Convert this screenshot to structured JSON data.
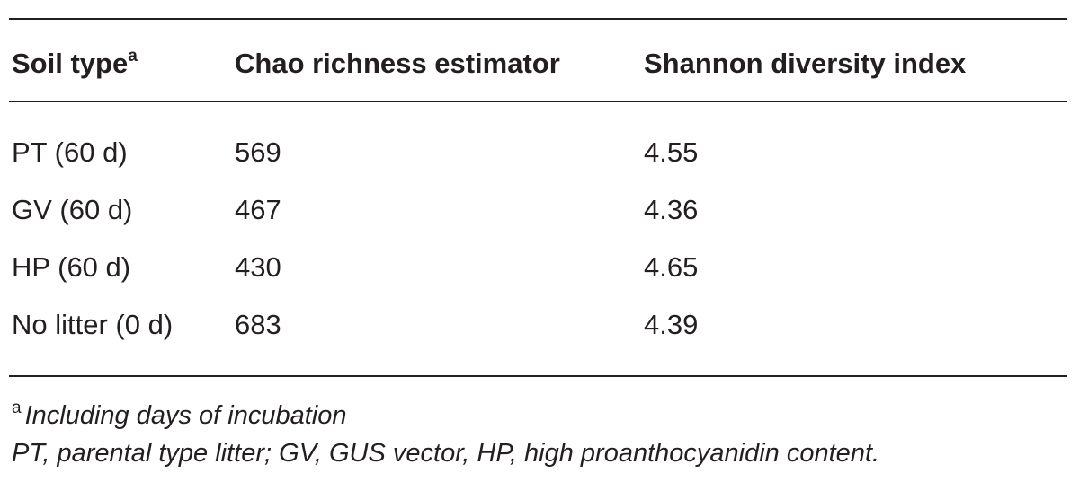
{
  "table": {
    "headers": {
      "soil_type": "Soil type",
      "soil_type_mark": "a",
      "chao": "Chao richness estimator",
      "shannon": "Shannon diversity index"
    },
    "rows": [
      {
        "soil": "PT (60 d)",
        "chao": "569",
        "shannon": "4.55"
      },
      {
        "soil": "GV (60 d)",
        "chao": "467",
        "shannon": "4.36"
      },
      {
        "soil": "HP (60 d)",
        "chao": "430",
        "shannon": "4.65"
      },
      {
        "soil": "No litter (0 d)",
        "chao": "683",
        "shannon": "4.39"
      }
    ]
  },
  "footnotes": {
    "mark": "a",
    "line1": "Including days of incubation",
    "line2": "PT, parental type litter; GV, GUS vector, HP, high proanthocyanidin content."
  }
}
